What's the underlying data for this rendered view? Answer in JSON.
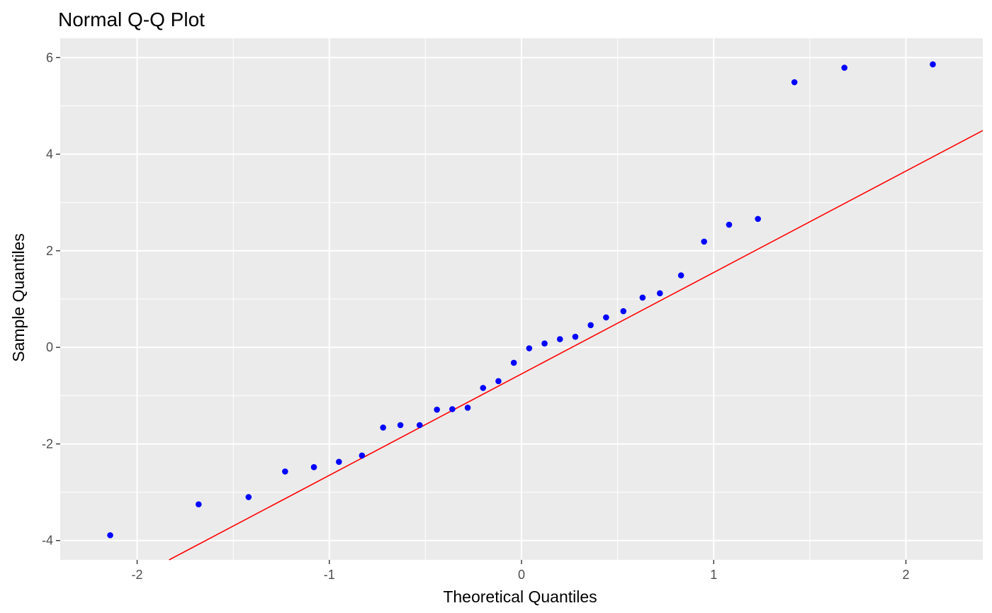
{
  "chart_data": {
    "type": "scatter",
    "title": "Normal Q-Q Plot",
    "xlabel": "Theoretical Quantiles",
    "ylabel": "Sample Quantiles",
    "xlim": [
      -2.4,
      2.4
    ],
    "ylim": [
      -4.4,
      6.4
    ],
    "x_ticks": [
      -2,
      -1,
      0,
      1,
      2
    ],
    "x_tick_labels": [
      "-2",
      "-1",
      "0",
      "1",
      "2"
    ],
    "y_ticks": [
      -4,
      -2,
      0,
      2,
      4,
      6
    ],
    "y_tick_labels": [
      "-4",
      "-2",
      "0",
      "2",
      "4",
      "6"
    ],
    "grid": true,
    "panel_background": "#ebebeb",
    "grid_color": "#ffffff",
    "point_color": "#0000ff",
    "line_color": "#ff0000",
    "reference_line": {
      "intercept": -0.55,
      "slope": 2.1
    },
    "points": [
      {
        "x": -2.14,
        "y": -3.89
      },
      {
        "x": -1.68,
        "y": -3.25
      },
      {
        "x": -1.42,
        "y": -3.1
      },
      {
        "x": -1.23,
        "y": -2.57
      },
      {
        "x": -1.08,
        "y": -2.48
      },
      {
        "x": -0.95,
        "y": -2.37
      },
      {
        "x": -0.83,
        "y": -2.24
      },
      {
        "x": -0.72,
        "y": -1.66
      },
      {
        "x": -0.63,
        "y": -1.61
      },
      {
        "x": -0.53,
        "y": -1.61
      },
      {
        "x": -0.44,
        "y": -1.29
      },
      {
        "x": -0.36,
        "y": -1.28
      },
      {
        "x": -0.28,
        "y": -1.25
      },
      {
        "x": -0.2,
        "y": -0.84
      },
      {
        "x": -0.12,
        "y": -0.7
      },
      {
        "x": -0.04,
        "y": -0.32
      },
      {
        "x": 0.04,
        "y": -0.02
      },
      {
        "x": 0.12,
        "y": 0.08
      },
      {
        "x": 0.2,
        "y": 0.17
      },
      {
        "x": 0.28,
        "y": 0.22
      },
      {
        "x": 0.36,
        "y": 0.46
      },
      {
        "x": 0.44,
        "y": 0.62
      },
      {
        "x": 0.53,
        "y": 0.75
      },
      {
        "x": 0.63,
        "y": 1.03
      },
      {
        "x": 0.72,
        "y": 1.12
      },
      {
        "x": 0.83,
        "y": 1.49
      },
      {
        "x": 0.95,
        "y": 2.19
      },
      {
        "x": 1.08,
        "y": 2.54
      },
      {
        "x": 1.23,
        "y": 2.66
      },
      {
        "x": 1.42,
        "y": 5.49
      },
      {
        "x": 1.68,
        "y": 5.79
      },
      {
        "x": 2.14,
        "y": 5.86
      }
    ]
  }
}
